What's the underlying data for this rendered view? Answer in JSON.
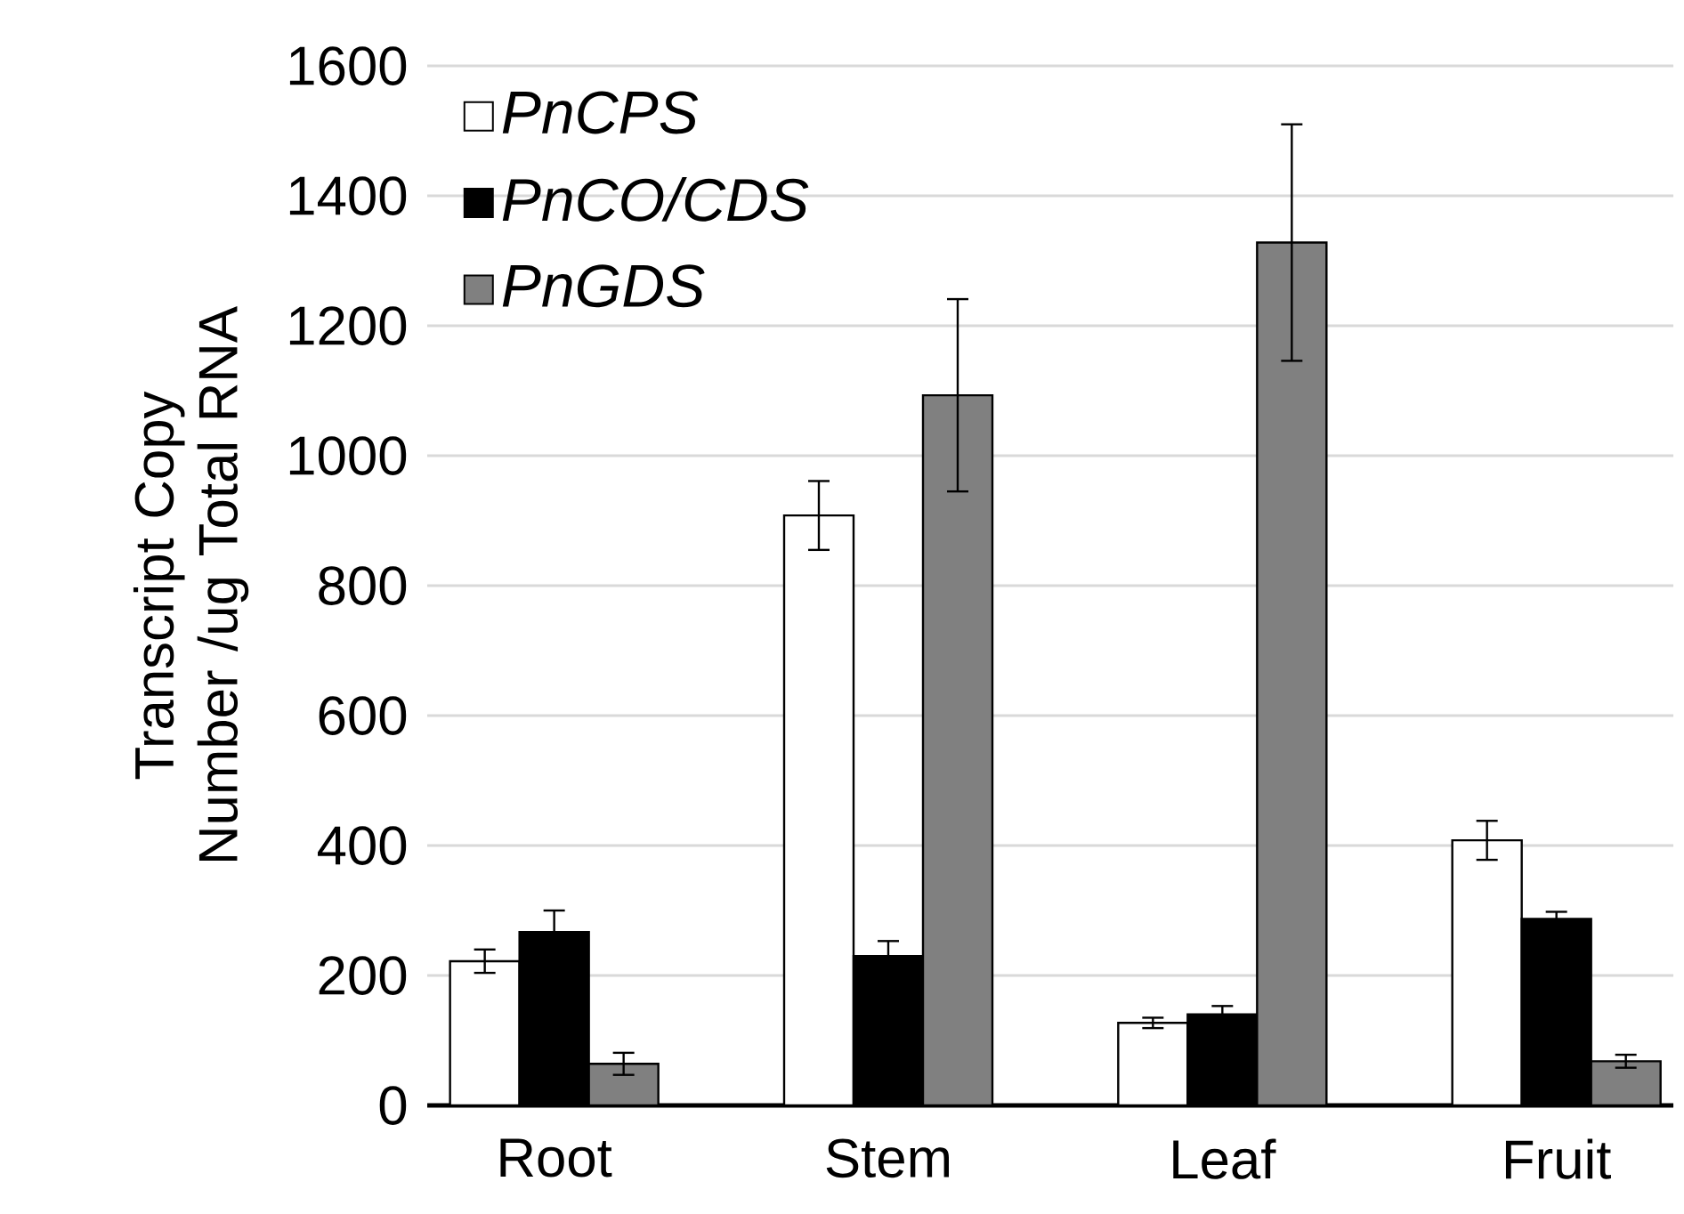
{
  "chart_data": {
    "type": "bar",
    "ylabel": "Transcript Copy Number /ug Total RNA",
    "categories": [
      "Root",
      "Stem",
      "Leaf",
      "Fruit"
    ],
    "series": [
      {
        "name": "PnCPS",
        "color": "#ffffff",
        "values": [
          222,
          908,
          127,
          408
        ],
        "errors": [
          18,
          53,
          8,
          30
        ]
      },
      {
        "name": "PnCO/CDS",
        "color": "#000000",
        "values": [
          267,
          230,
          140,
          287
        ],
        "errors": [
          33,
          23,
          13,
          11
        ]
      },
      {
        "name": "PnGDS",
        "color": "#808080",
        "values": [
          64,
          1093,
          1328,
          68
        ],
        "errors": [
          17,
          148,
          182,
          10
        ]
      }
    ],
    "ylim": [
      0,
      1600
    ],
    "yticks": [
      0,
      200,
      400,
      600,
      800,
      1000,
      1200,
      1400,
      1600
    ],
    "grid": "y",
    "legend": "top left"
  }
}
